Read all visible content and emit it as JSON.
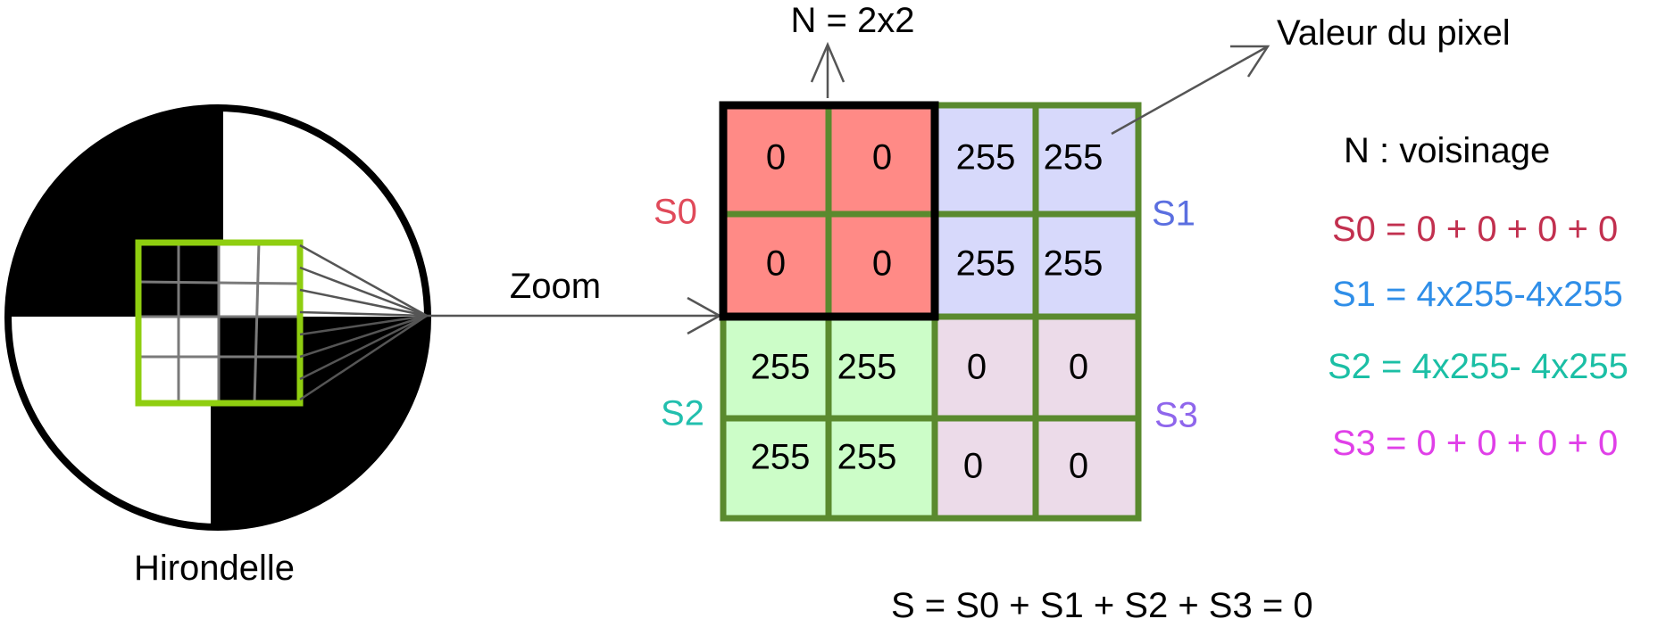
{
  "target": {
    "caption": "Hirondelle"
  },
  "zoom_label": "Zoom",
  "neighborhood_title": "N = 2x2",
  "pixel_value_label": "Valeur du pixel",
  "grid": {
    "values": [
      [
        "0",
        "0",
        "255",
        "255"
      ],
      [
        "0",
        "0",
        "255",
        "255"
      ],
      [
        "255",
        "255",
        "0",
        "0"
      ],
      [
        "255",
        "255",
        "0",
        "0"
      ]
    ]
  },
  "quadrant_labels": {
    "s0": "S0",
    "s1": "S1",
    "s2": "S2",
    "s3": "S3"
  },
  "legend": {
    "neighborhood": "N : voisinage",
    "s0": "S0 = 0 + 0 + 0 + 0",
    "s1": "S1 = 4x255-4x255",
    "s2": "S2 = 4x255- 4x255",
    "s3": "S3 = 0 + 0 + 0 + 0"
  },
  "total_formula": "S = S0 + S1 + S2 + S3 = 0",
  "colors": {
    "s0": "#c2304f",
    "s1": "#2f8ee8",
    "s2": "#1bbfa5",
    "s3": "#e040e8",
    "s0_label": "#e04a5a",
    "s1_label": "#5b6fe0",
    "s2_label": "#22bfae",
    "s3_label": "#8f66ec",
    "grid_border": "#5a8a2e",
    "green_frame": "#8fce10"
  }
}
